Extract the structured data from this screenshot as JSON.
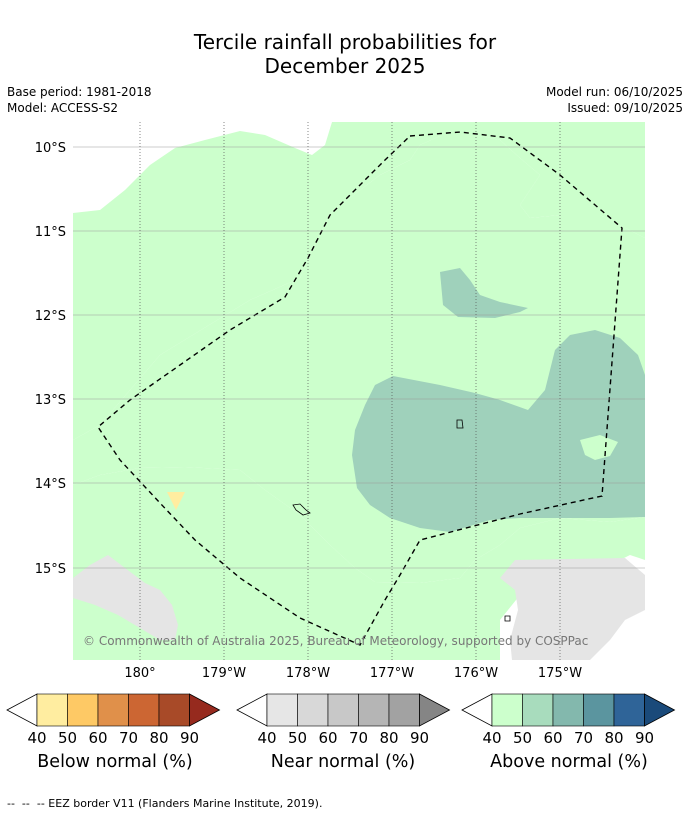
{
  "title_line1": "Tercile rainfall probabilities for",
  "title_line2": "December 2025",
  "base_period": "Base period: 1981-2018",
  "model": "Model: ACCESS-S2",
  "model_run": "Model run: 06/10/2025",
  "issued": "Issued: 09/10/2025",
  "copyright": "© Commonwealth of Australia 2025, Bureau of Meteorology, supported by COSPPac",
  "lat_labels": [
    "10°S",
    "11°S",
    "12°S",
    "13°S",
    "14°S",
    "15°S"
  ],
  "lon_labels": [
    "180°",
    "179°W",
    "178°W",
    "177°W",
    "176°W",
    "175°W"
  ],
  "colorbars": [
    {
      "name": "Below normal (%)",
      "ticks": [
        "40",
        "50",
        "60",
        "70",
        "80",
        "90"
      ],
      "colors": [
        "#ffeda0",
        "#fec965",
        "#e0904a",
        "#cc6633",
        "#a84a28",
        "#962a1e"
      ]
    },
    {
      "name": "Near normal (%)",
      "ticks": [
        "40",
        "50",
        "60",
        "70",
        "80",
        "90"
      ],
      "colors": [
        "#e6e6e6",
        "#d8d8d8",
        "#c8c8c8",
        "#b5b5b5",
        "#a2a2a2",
        "#858585"
      ]
    },
    {
      "name": "Above normal (%)",
      "ticks": [
        "40",
        "50",
        "60",
        "70",
        "80",
        "90"
      ],
      "colors": [
        "#ccffcc",
        "#a8dcbd",
        "#83b8ad",
        "#5b959f",
        "#2f6498",
        "#1a4a7a"
      ]
    }
  ],
  "legend_text": "--  --  -- EEZ border V11 (Flanders Marine Institute, 2019).",
  "colors": {
    "above_50": "#ccffcc",
    "above_60": "#9fd1bb",
    "near_50": "#e5e5e5",
    "below_50": "#ffeda0"
  }
}
